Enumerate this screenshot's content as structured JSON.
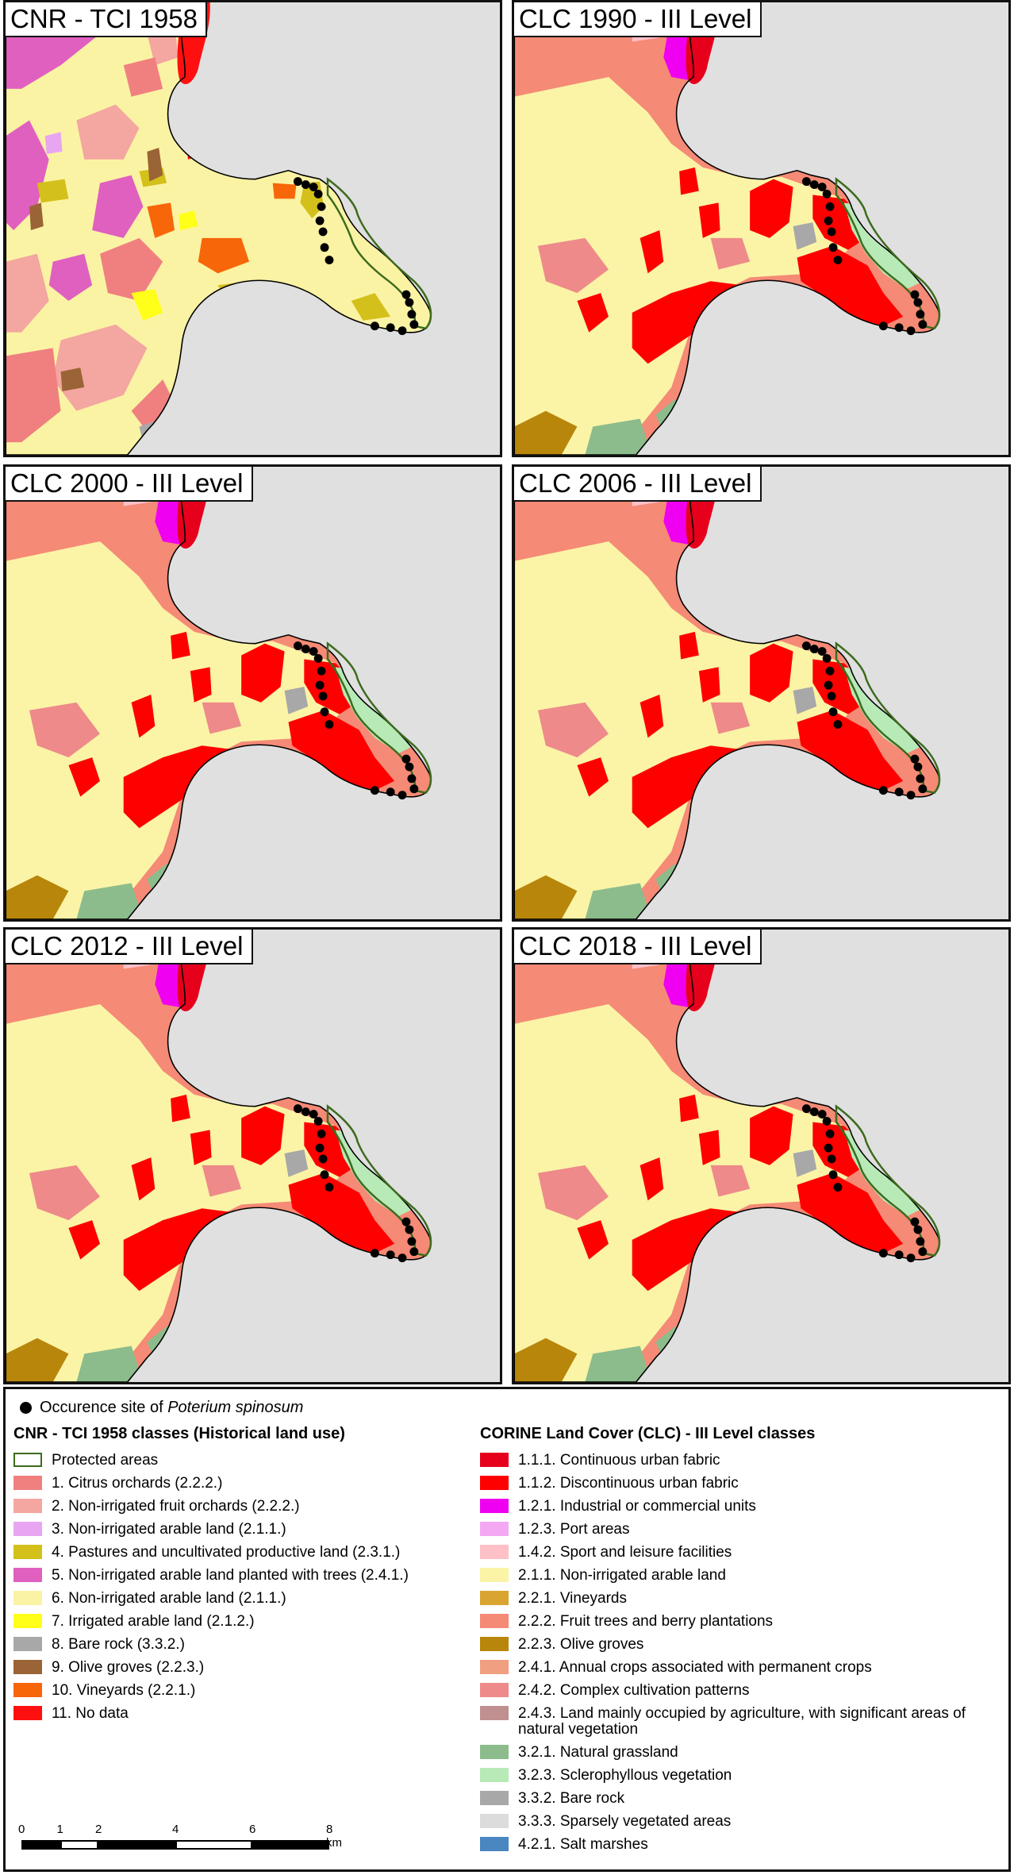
{
  "panels": [
    {
      "id": "p1958",
      "title": "CNR - TCI 1958",
      "style": "tci"
    },
    {
      "id": "p1990",
      "title": "CLC 1990 - III Level",
      "style": "clc"
    },
    {
      "id": "p2000",
      "title": "CLC 2000 - III Level",
      "style": "clc"
    },
    {
      "id": "p2006",
      "title": "CLC 2006 - III Level",
      "style": "clc"
    },
    {
      "id": "p2012",
      "title": "CLC 2012 - III Level",
      "style": "clc"
    },
    {
      "id": "p2018",
      "title": "CLC 2018 - III Level",
      "style": "clc"
    }
  ],
  "legend": {
    "occurrence_prefix": "Occurence site of",
    "occurrence_species": "Poterium spinosum",
    "tci_heading": "CNR - TCI 1958 classes (Historical land use)",
    "clc_heading": "CORINE Land Cover (CLC) - III Level classes",
    "tci_items": [
      {
        "label": "Protected areas",
        "color": "#3d6b1e",
        "outline": true
      },
      {
        "label": "1. Citrus orchards (2.2.2.)",
        "color": "#f08080"
      },
      {
        "label": "2. Non-irrigated fruit orchards (2.2.2.)",
        "color": "#f4a6a0"
      },
      {
        "label": "3. Non-irrigated arable land (2.1.1.)",
        "color": "#e8a6f2"
      },
      {
        "label": "4. Pastures and uncultivated productive land (2.3.1.)",
        "color": "#d4c01a"
      },
      {
        "label": "5. Non-irrigated arable land planted with trees (2.4.1.)",
        "color": "#e060c0"
      },
      {
        "label": "6. Non-irrigated arable land (2.1.1.)",
        "color": "#fbf3a4"
      },
      {
        "label": "7. Irrigated arable land (2.1.2.)",
        "color": "#ffff1a"
      },
      {
        "label": "8. Bare rock (3.3.2.)",
        "color": "#a8a8a8"
      },
      {
        "label": "9. Olive groves (2.2.3.)",
        "color": "#9b6436"
      },
      {
        "label": "10. Vineyards (2.2.1.)",
        "color": "#f8660a"
      },
      {
        "label": "11. No data",
        "color": "#ff1010"
      }
    ],
    "clc_items": [
      {
        "label": "1.1.1. Continuous urban fabric",
        "color": "#e6001c"
      },
      {
        "label": "1.1.2. Discontinuous urban fabric",
        "color": "#ff0000"
      },
      {
        "label": "1.2.1. Industrial or commercial units",
        "color": "#f000f0"
      },
      {
        "label": "1.2.3. Port areas",
        "color": "#f4a8f4"
      },
      {
        "label": "1.4.2. Sport and leisure facilities",
        "color": "#ffc0c8"
      },
      {
        "label": "2.1.1. Non-irrigated arable land",
        "color": "#fbf4a6"
      },
      {
        "label": "2.2.1. Vineyards",
        "color": "#d9a430"
      },
      {
        "label": "2.2.2. Fruit trees and berry plantations",
        "color": "#f58a76"
      },
      {
        "label": "2.2.3. Olive groves",
        "color": "#b8860b"
      },
      {
        "label": "2.4.1. Annual crops associated with permanent crops",
        "color": "#f0a080"
      },
      {
        "label": "2.4.2. Complex cultivation patterns",
        "color": "#ee8a8a"
      },
      {
        "label": "2.4.3. Land mainly occupied by agriculture, with significant areas of natural vegetation",
        "color": "#c09090",
        "tall": true
      },
      {
        "label": "3.2.1. Natural grassland",
        "color": "#8cbc8c"
      },
      {
        "label": "3.2.3. Sclerophyllous vegetation",
        "color": "#b8eab8"
      },
      {
        "label": "3.3.2. Bare rock",
        "color": "#a8a8a8"
      },
      {
        "label": "3.3.3. Sparsely vegetated areas",
        "color": "#dcdcdc"
      },
      {
        "label": "4.2.1. Salt marshes",
        "color": "#4a86c0"
      }
    ],
    "scale": {
      "labels": [
        "0",
        "1",
        "2",
        "4",
        "6",
        "8 km"
      ],
      "values": [
        0,
        1,
        2,
        4,
        6,
        8
      ]
    }
  }
}
